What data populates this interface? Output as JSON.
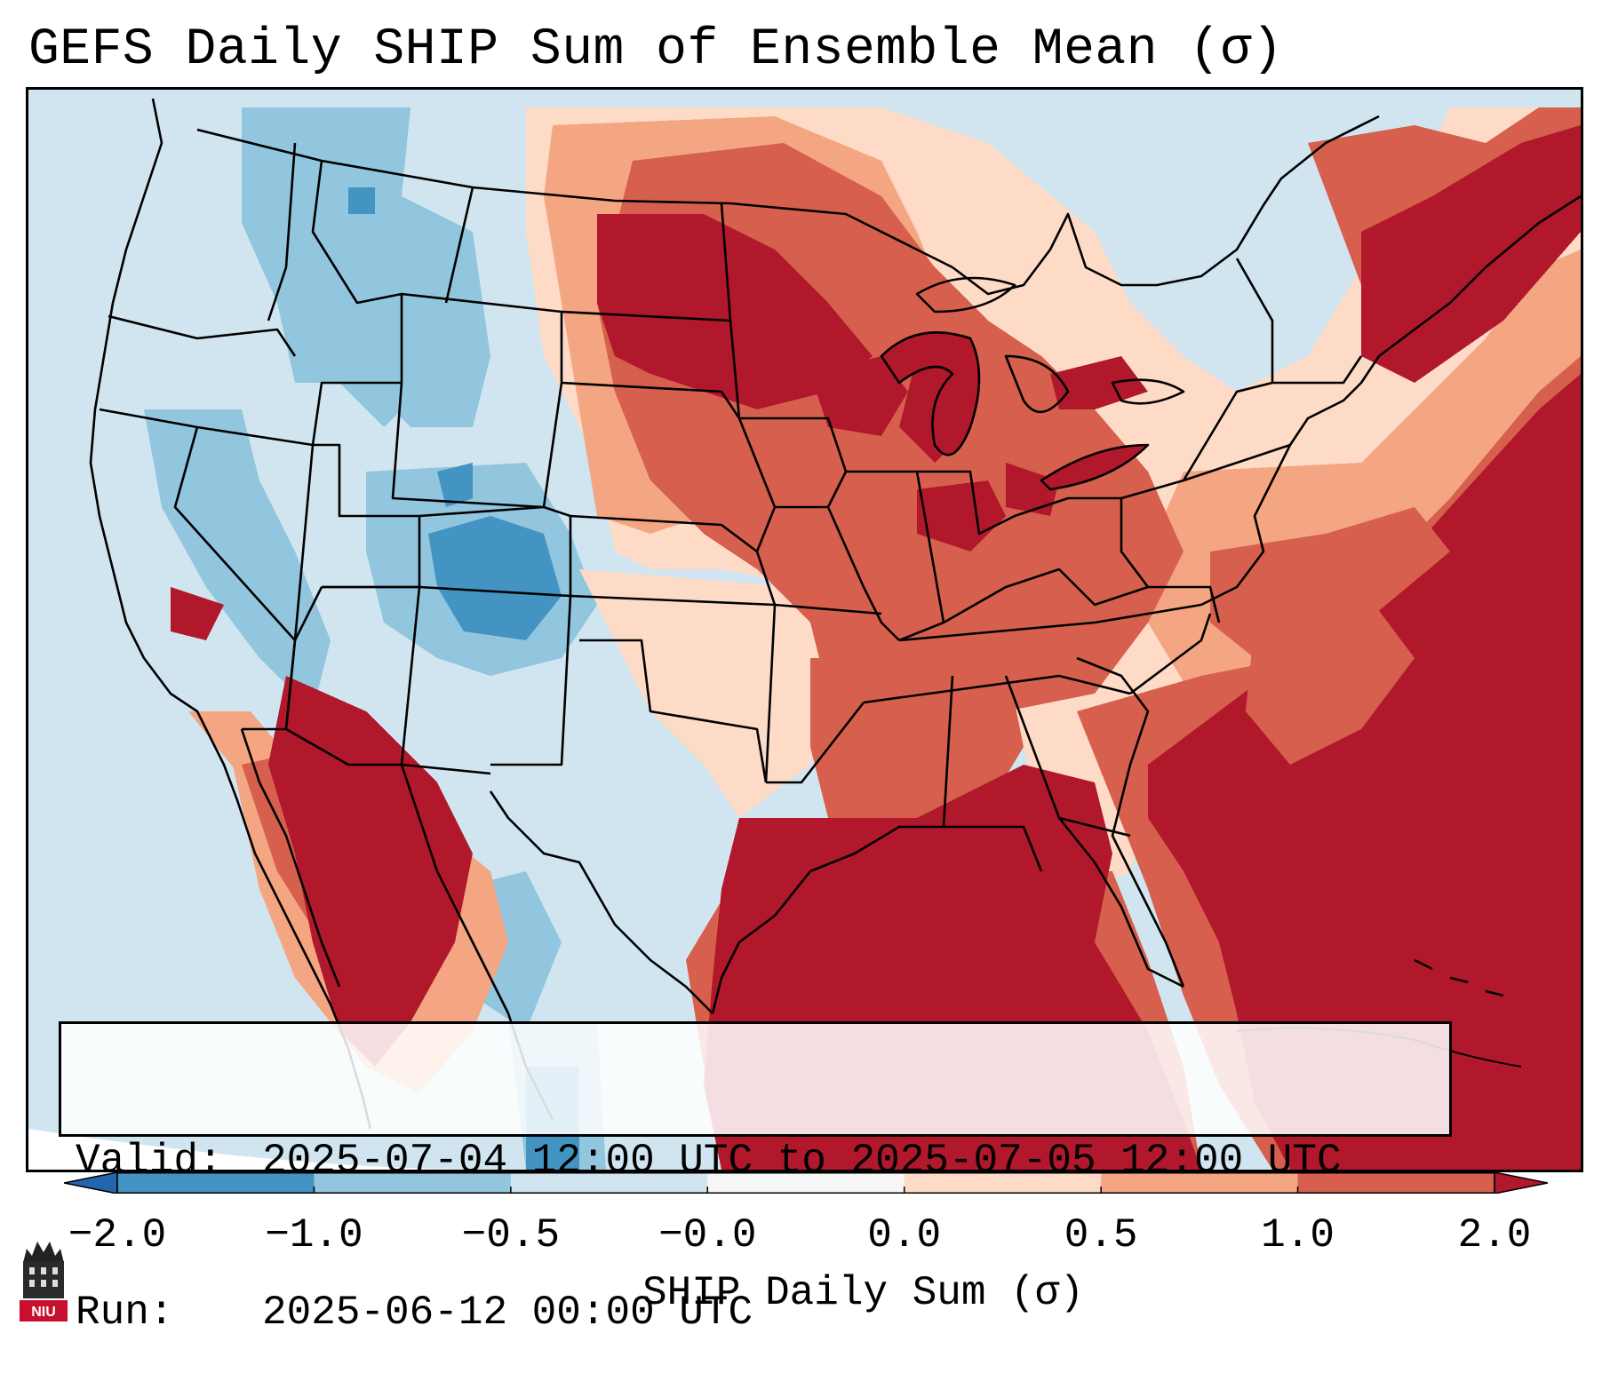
{
  "title": "GEFS Daily SHIP Sum of Ensemble Mean (σ)",
  "info": {
    "valid_label": "Valid:",
    "valid_value": "2025-07-04 12:00 UTC to 2025-07-05 12:00 UTC",
    "run_label": "Run:",
    "run_value": "2025-06-12 00:00 UTC"
  },
  "colorbar": {
    "label": "SHIP Daily Sum (σ)",
    "ticks": [
      "−2.0",
      "−1.0",
      "−0.5",
      "−0.0",
      "0.0",
      "0.5",
      "1.0",
      "2.0"
    ],
    "colors": [
      "#4393c3",
      "#92c5de",
      "#d1e5f0",
      "#f7f7f7",
      "#fddbc7",
      "#f4a582",
      "#d6604d",
      "#b2182b"
    ],
    "under_color": "#2166ac",
    "over_color": "#b2182b"
  },
  "logo": {
    "text": "NIU",
    "name": "niu-logo-icon"
  }
}
